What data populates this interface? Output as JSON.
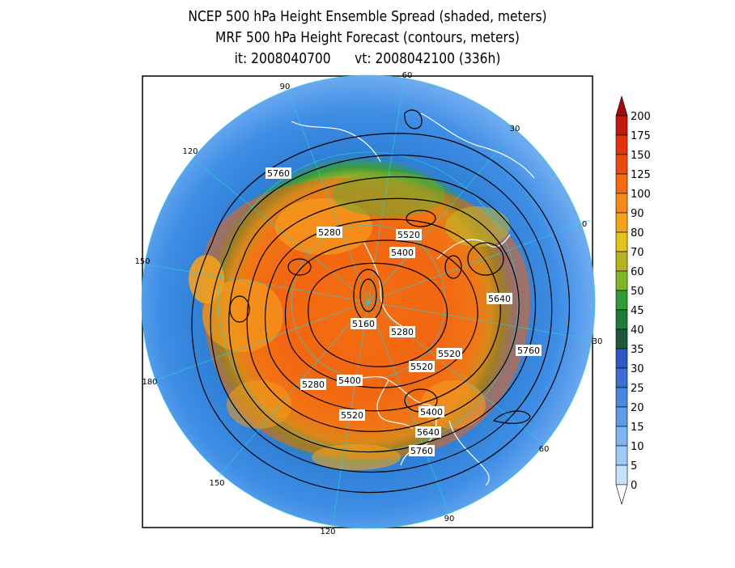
{
  "title": {
    "line1": "NCEP 500 hPa Height Ensemble Spread (shaded, meters)",
    "line2": "MRF 500 hPa Height Forecast (contours, meters)",
    "line3": "it: 2008040700      vt: 2008042100 (336h)"
  },
  "longitude_labels": [
    "60",
    "30",
    "0",
    "30",
    "60",
    "90",
    "120",
    "150",
    "180",
    "150",
    "120",
    "90"
  ],
  "contour_labels": [
    "5760",
    "5280",
    "5520",
    "5400",
    "5640",
    "5160",
    "5280",
    "5760",
    "5520",
    "5520",
    "5280",
    "5400",
    "5400",
    "5640",
    "5520",
    "5760"
  ],
  "colorbar": {
    "levels": [
      "0",
      "5",
      "10",
      "15",
      "20",
      "25",
      "30",
      "35",
      "40",
      "45",
      "50",
      "60",
      "70",
      "80",
      "90",
      "100",
      "125",
      "150",
      "175",
      "200"
    ],
    "colors": [
      "#c6e2ff",
      "#9fcaf7",
      "#7eb4f0",
      "#5c9de8",
      "#4a87de",
      "#3a6fd4",
      "#2e58c4",
      "#1b5a3c",
      "#1f7a3a",
      "#2e9b35",
      "#7fb52a",
      "#b4b422",
      "#e6c21c",
      "#f5a21c",
      "#f58a18",
      "#f56a12",
      "#ef4a0e",
      "#e4320a",
      "#c21a0a",
      "#a00c0c"
    ]
  }
}
